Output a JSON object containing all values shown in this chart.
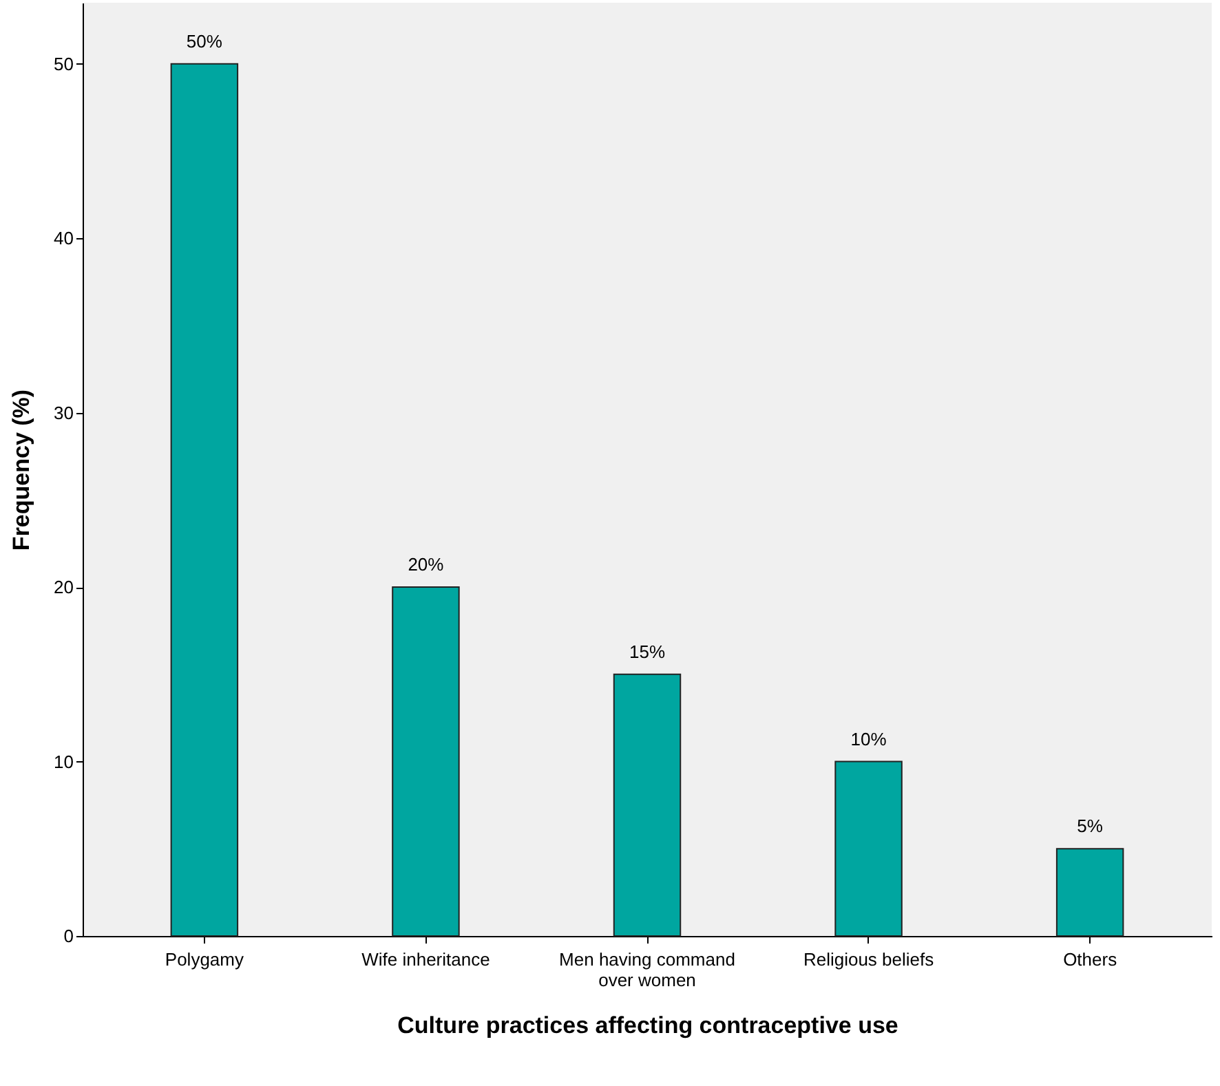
{
  "chart_data": {
    "type": "bar",
    "xlabel": "Culture practices affecting contraceptive use",
    "ylabel": "Frequency (%)",
    "categories": [
      "Polygamy",
      "Wife inheritance",
      "Men having command over women",
      "Religious beliefs",
      "Others"
    ],
    "values": [
      50,
      20,
      15,
      10,
      5
    ],
    "value_labels": [
      "50%",
      "20%",
      "15%",
      "10%",
      "5%"
    ],
    "color": "#00a6a0",
    "ylim": [
      0,
      53.5
    ],
    "yticks": [
      0,
      10,
      20,
      30,
      40,
      50
    ],
    "grid": false
  }
}
